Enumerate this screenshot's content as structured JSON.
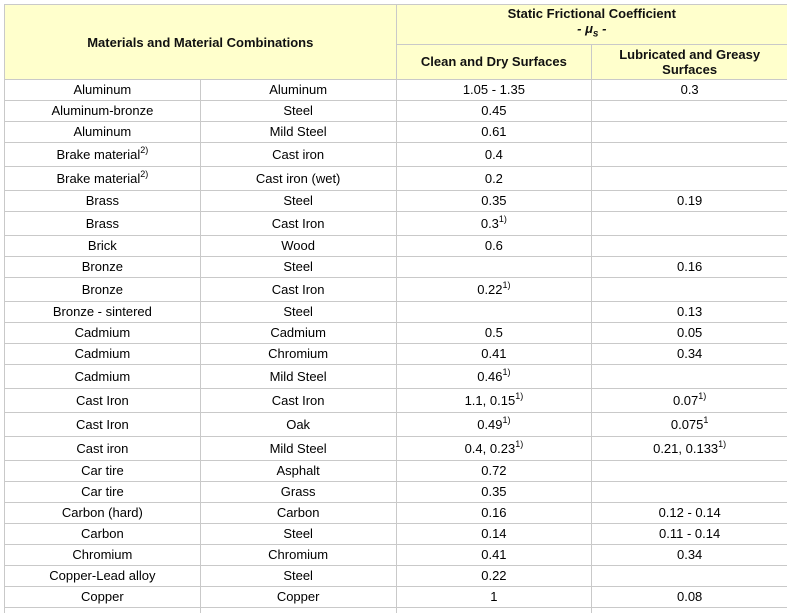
{
  "header": {
    "materials": "Materials and Material Combinations",
    "coef_title": "Static Frictional Coefficient",
    "mu_prefix": "- ",
    "mu_symbol": "μ",
    "mu_sub": "s",
    "mu_suffix": " -",
    "clean_dry": "Clean and Dry Surfaces",
    "lubricated": "Lubricated and Greasy Surfaces"
  },
  "rows": [
    {
      "m1": "Aluminum",
      "m1_sup": "",
      "m2": "Aluminum",
      "dry": "1.05 - 1.35",
      "dry_sup": "",
      "lub": "0.3",
      "lub_sup": "",
      "tall": false
    },
    {
      "m1": "Aluminum-bronze",
      "m1_sup": "",
      "m2": "Steel",
      "dry": "0.45",
      "dry_sup": "",
      "lub": "",
      "lub_sup": "",
      "tall": false
    },
    {
      "m1": "Aluminum",
      "m1_sup": "",
      "m2": "Mild Steel",
      "dry": "0.61",
      "dry_sup": "",
      "lub": "",
      "lub_sup": "",
      "tall": false
    },
    {
      "m1": "Brake material",
      "m1_sup": "2)",
      "m2": "Cast iron",
      "dry": "0.4",
      "dry_sup": "",
      "lub": "",
      "lub_sup": "",
      "tall": true
    },
    {
      "m1": "Brake material",
      "m1_sup": "2)",
      "m2": "Cast iron (wet)",
      "dry": "0.2",
      "dry_sup": "",
      "lub": "",
      "lub_sup": "",
      "tall": true
    },
    {
      "m1": "Brass",
      "m1_sup": "",
      "m2": "Steel",
      "dry": "0.35",
      "dry_sup": "",
      "lub": "0.19",
      "lub_sup": "",
      "tall": false
    },
    {
      "m1": "Brass",
      "m1_sup": "",
      "m2": "Cast Iron",
      "dry": "0.3",
      "dry_sup": "1)",
      "lub": "",
      "lub_sup": "",
      "tall": true
    },
    {
      "m1": "Brick",
      "m1_sup": "",
      "m2": "Wood",
      "dry": "0.6",
      "dry_sup": "",
      "lub": "",
      "lub_sup": "",
      "tall": false
    },
    {
      "m1": "Bronze",
      "m1_sup": "",
      "m2": "Steel",
      "dry": "",
      "dry_sup": "",
      "lub": "0.16",
      "lub_sup": "",
      "tall": false
    },
    {
      "m1": "Bronze",
      "m1_sup": "",
      "m2": "Cast Iron",
      "dry": "0.22",
      "dry_sup": "1)",
      "lub": "",
      "lub_sup": "",
      "tall": true
    },
    {
      "m1": "Bronze - sintered",
      "m1_sup": "",
      "m2": "Steel",
      "dry": "",
      "dry_sup": "",
      "lub": "0.13",
      "lub_sup": "",
      "tall": false
    },
    {
      "m1": "Cadmium",
      "m1_sup": "",
      "m2": "Cadmium",
      "dry": "0.5",
      "dry_sup": "",
      "lub": "0.05",
      "lub_sup": "",
      "tall": false
    },
    {
      "m1": "Cadmium",
      "m1_sup": "",
      "m2": "Chromium",
      "dry": "0.41",
      "dry_sup": "",
      "lub": "0.34",
      "lub_sup": "",
      "tall": false
    },
    {
      "m1": "Cadmium",
      "m1_sup": "",
      "m2": "Mild Steel",
      "dry": "0.46",
      "dry_sup": "1)",
      "lub": "",
      "lub_sup": "",
      "tall": true
    },
    {
      "m1": "Cast Iron",
      "m1_sup": "",
      "m2": "Cast Iron",
      "dry": "1.1, 0.15",
      "dry_sup": "1)",
      "lub": "0.07",
      "lub_sup": "1)",
      "tall": true
    },
    {
      "m1": "Cast Iron",
      "m1_sup": "",
      "m2": "Oak",
      "dry": "0.49",
      "dry_sup": "1)",
      "lub": "0.075",
      "lub_sup": "1",
      "tall": true
    },
    {
      "m1": "Cast iron",
      "m1_sup": "",
      "m2": "Mild Steel",
      "dry": "0.4, 0.23",
      "dry_sup": "1)",
      "lub": "0.21, 0.133",
      "lub_sup": "1)",
      "tall": true
    },
    {
      "m1": "Car tire",
      "m1_sup": "",
      "m2": "Asphalt",
      "dry": "0.72",
      "dry_sup": "",
      "lub": "",
      "lub_sup": "",
      "tall": false
    },
    {
      "m1": "Car tire",
      "m1_sup": "",
      "m2": "Grass",
      "dry": "0.35",
      "dry_sup": "",
      "lub": "",
      "lub_sup": "",
      "tall": false
    },
    {
      "m1": "Carbon (hard)",
      "m1_sup": "",
      "m2": "Carbon",
      "dry": "0.16",
      "dry_sup": "",
      "lub": "0.12 - 0.14",
      "lub_sup": "",
      "tall": false
    },
    {
      "m1": "Carbon",
      "m1_sup": "",
      "m2": "Steel",
      "dry": "0.14",
      "dry_sup": "",
      "lub": "0.11 - 0.14",
      "lub_sup": "",
      "tall": false
    },
    {
      "m1": "Chromium",
      "m1_sup": "",
      "m2": "Chromium",
      "dry": "0.41",
      "dry_sup": "",
      "lub": "0.34",
      "lub_sup": "",
      "tall": false
    },
    {
      "m1": "Copper-Lead alloy",
      "m1_sup": "",
      "m2": "Steel",
      "dry": "0.22",
      "dry_sup": "",
      "lub": "",
      "lub_sup": "",
      "tall": false
    },
    {
      "m1": "Copper",
      "m1_sup": "",
      "m2": "Copper",
      "dry": "1",
      "dry_sup": "",
      "lub": "0.08",
      "lub_sup": "",
      "tall": false
    },
    {
      "m1": "",
      "m1_sup": "",
      "m2": "",
      "dry": "",
      "dry_sup": "",
      "lub": "",
      "lub_sup": "",
      "tall": false
    }
  ]
}
